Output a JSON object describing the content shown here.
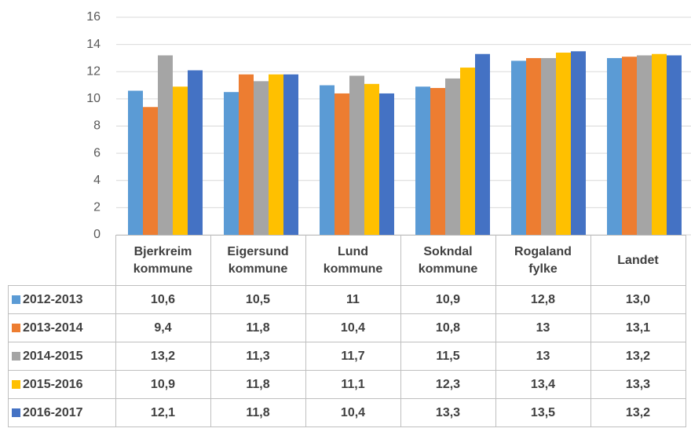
{
  "chart_data": {
    "type": "bar",
    "categories": [
      "Bjerkreim kommune",
      "Eigersund kommune",
      "Lund kommune",
      "Sokndal kommune",
      "Rogaland fylke",
      "Landet"
    ],
    "series": [
      {
        "name": "2012-2013",
        "color": "#5b9bd5",
        "values": [
          10.6,
          10.5,
          11,
          10.9,
          12.8,
          13.0
        ],
        "value_labels": [
          "10,6",
          "10,5",
          "11",
          "10,9",
          "12,8",
          "13,0"
        ]
      },
      {
        "name": "2013-2014",
        "color": "#ed7d31",
        "values": [
          9.4,
          11.8,
          10.4,
          10.8,
          13,
          13.1
        ],
        "value_labels": [
          "9,4",
          "11,8",
          "10,4",
          "10,8",
          "13",
          "13,1"
        ]
      },
      {
        "name": "2014-2015",
        "color": "#a5a5a5",
        "values": [
          13.2,
          11.3,
          11.7,
          11.5,
          13,
          13.2
        ],
        "value_labels": [
          "13,2",
          "11,3",
          "11,7",
          "11,5",
          "13",
          "13,2"
        ]
      },
      {
        "name": "2015-2016",
        "color": "#ffc000",
        "values": [
          10.9,
          11.8,
          11.1,
          12.3,
          13.4,
          13.3
        ],
        "value_labels": [
          "10,9",
          "11,8",
          "11,1",
          "12,3",
          "13,4",
          "13,3"
        ]
      },
      {
        "name": "2016-2017",
        "color": "#4472c4",
        "values": [
          12.1,
          11.8,
          10.4,
          13.3,
          13.5,
          13.2
        ],
        "value_labels": [
          "12,1",
          "11,8",
          "10,4",
          "13,3",
          "13,5",
          "13,2"
        ]
      }
    ],
    "ylim": [
      0,
      16
    ],
    "yticks": [
      0,
      2,
      4,
      6,
      8,
      10,
      12,
      14,
      16
    ],
    "grid": true
  }
}
